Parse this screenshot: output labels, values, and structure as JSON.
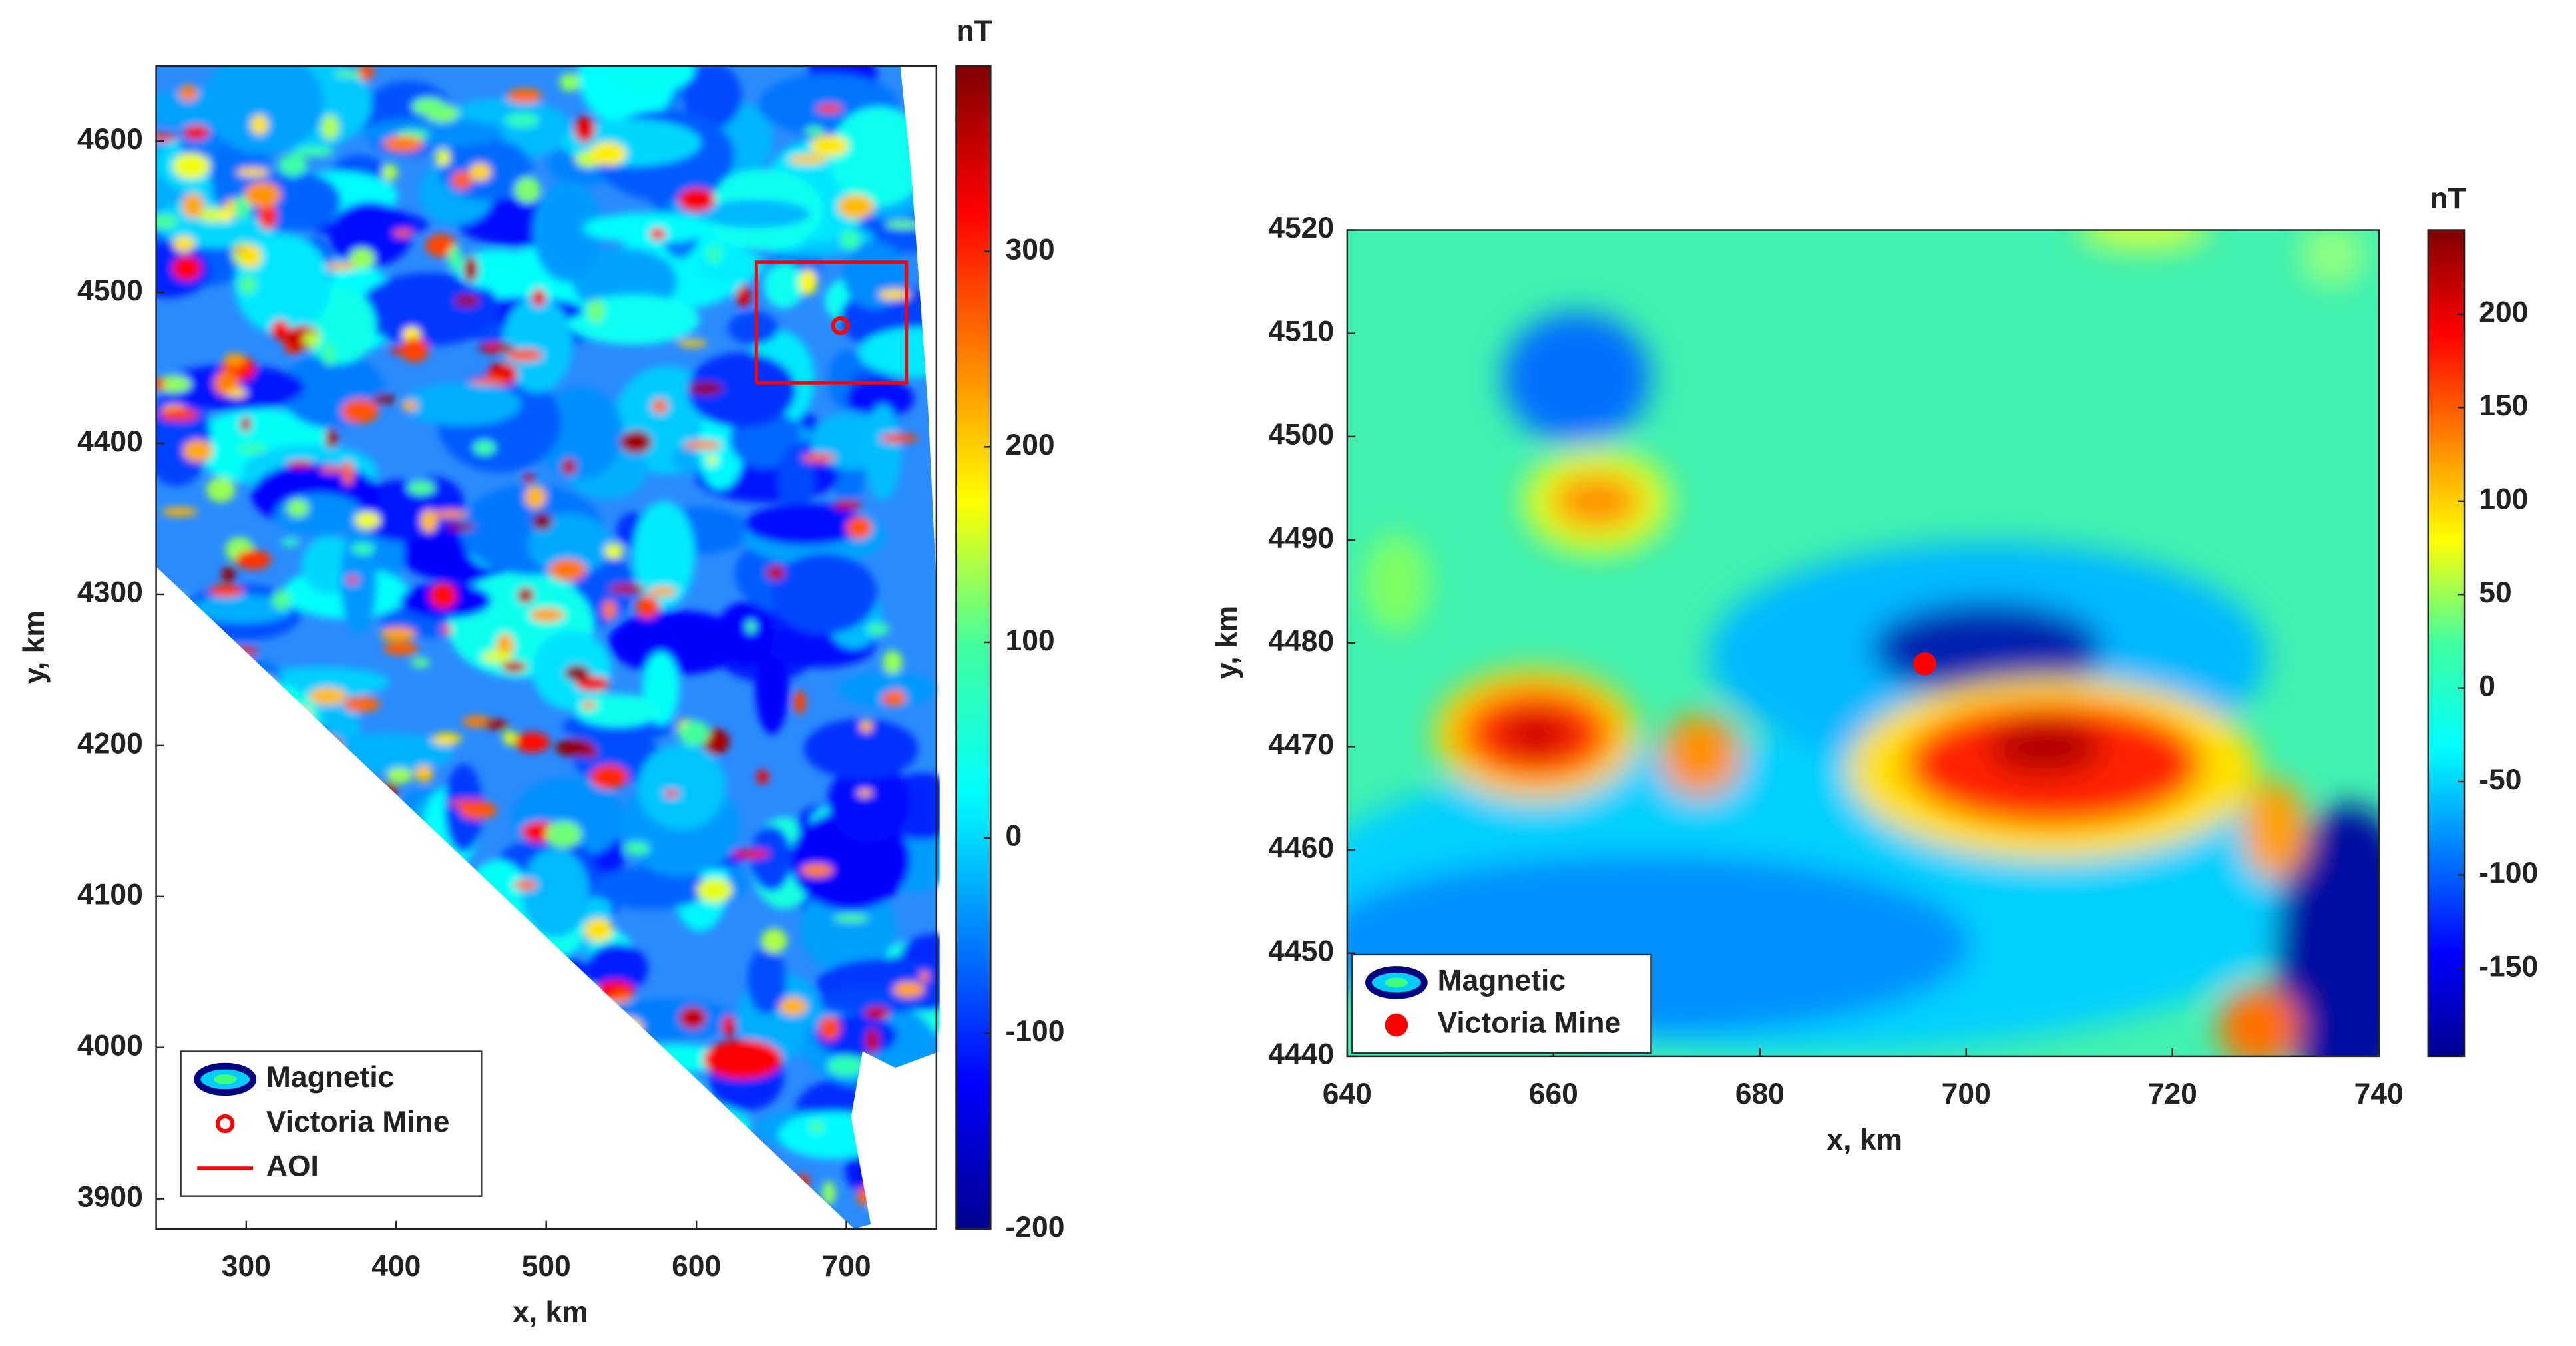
{
  "chart_data": [
    {
      "type": "heatmap",
      "colormap": "jet",
      "x_label": "x, km",
      "y_label": "y, km",
      "xlim": [
        240,
        760
      ],
      "xticks": [
        300,
        400,
        500,
        600,
        700
      ],
      "ylim": [
        3880,
        4650
      ],
      "yticks": [
        3900,
        4000,
        4100,
        4200,
        4300,
        4400,
        4500,
        4600
      ],
      "colorbar": {
        "label": "nT",
        "lim": [
          -200,
          395
        ],
        "ticks": [
          -200,
          -100,
          0,
          100,
          200,
          300
        ]
      },
      "series": [
        {
          "name": "Magnetic"
        },
        {
          "name": "Victoria Mine",
          "type": "scatter",
          "color": "#ff0000",
          "x": [
            696
          ],
          "y": [
            4478
          ]
        },
        {
          "name": "AOI",
          "type": "line",
          "color": "#ff0000",
          "x": [
            640,
            740,
            740,
            640,
            640
          ],
          "y": [
            4440,
            4440,
            4520,
            4520,
            4440
          ]
        }
      ]
    },
    {
      "type": "heatmap",
      "colormap": "jet",
      "x_label": "x, km",
      "y_label": "y, km",
      "xlim": [
        640,
        740
      ],
      "xticks": [
        640,
        660,
        680,
        700,
        720,
        740
      ],
      "ylim": [
        4440,
        4520
      ],
      "yticks": [
        4440,
        4450,
        4460,
        4470,
        4480,
        4490,
        4500,
        4510,
        4520
      ],
      "colorbar": {
        "label": "nT",
        "lim": [
          -197,
          245
        ],
        "ticks": [
          -150,
          -100,
          -50,
          0,
          50,
          100,
          150,
          200
        ]
      },
      "series": [
        {
          "name": "Magnetic"
        },
        {
          "name": "Victoria Mine",
          "type": "scatter",
          "color": "#ff0000",
          "x": [
            696
          ],
          "y": [
            4478
          ]
        }
      ]
    }
  ]
}
